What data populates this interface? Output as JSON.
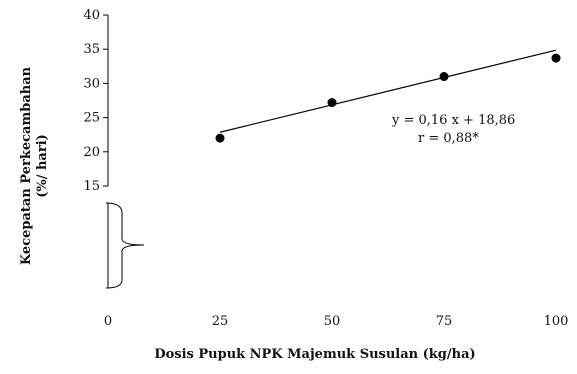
{
  "chart_data": {
    "type": "scatter",
    "title": "",
    "xlabel": "Dosis Pupuk NPK Majemuk Susulan (kg/ha)",
    "ylabel_line1": "Kecepatan Perkecambahan",
    "ylabel_line2": "(%/ hari)",
    "x": [
      25,
      50,
      75,
      100
    ],
    "y": [
      22,
      27.2,
      31,
      33.7
    ],
    "xlim": [
      0,
      100
    ],
    "ylim": [
      15,
      40
    ],
    "x_ticks": [
      "0",
      "25",
      "50",
      "75",
      "100"
    ],
    "y_ticks": [
      "15",
      "20",
      "25",
      "30",
      "35",
      "40"
    ],
    "axis_break": true,
    "grid": false,
    "legend": "none",
    "regression": {
      "slope": 0.16,
      "intercept": 18.86,
      "x_range": [
        25,
        100
      ],
      "equation": "y = 0,16 x + 18,86",
      "r": "r = 0,88*"
    },
    "colors": {
      "points": "#000000",
      "line": "#000000",
      "axis": "#000000"
    }
  }
}
